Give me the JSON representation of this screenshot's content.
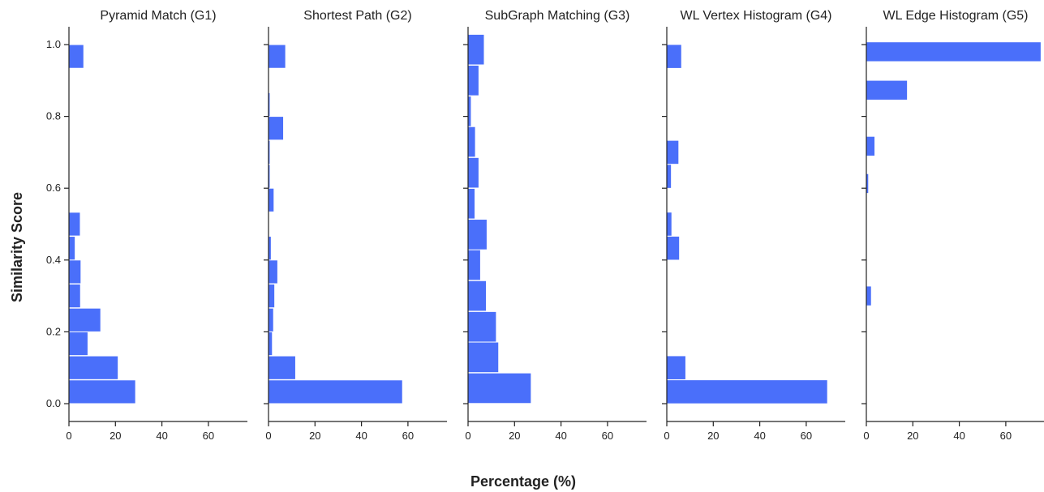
{
  "chart_data": {
    "type": "bar",
    "orientation": "horizontal",
    "xlabel": "Percentage (%)",
    "ylabel": "Similarity Score",
    "ylim": [
      -0.05,
      1.05
    ],
    "xlim": [
      0,
      76
    ],
    "bar_color": "#4a6ffa",
    "y_ticks": [
      0.0,
      0.2,
      0.4,
      0.6,
      0.8,
      1.0
    ],
    "y_tick_labels": [
      "0.0",
      "0.2",
      "0.4",
      "0.6",
      "0.8",
      "1.0"
    ],
    "x_ticks": [
      0,
      20,
      40,
      60
    ],
    "x_tick_labels": [
      "0",
      "20",
      "40",
      "60"
    ],
    "panels": [
      {
        "title": "Pyramid Match (G1)",
        "bars": [
          {
            "y": 0.033,
            "value": 28.5
          },
          {
            "y": 0.1,
            "value": 21.0
          },
          {
            "y": 0.167,
            "value": 8.0
          },
          {
            "y": 0.233,
            "value": 13.5
          },
          {
            "y": 0.3,
            "value": 4.8
          },
          {
            "y": 0.367,
            "value": 5.0
          },
          {
            "y": 0.433,
            "value": 2.5
          },
          {
            "y": 0.5,
            "value": 4.7
          },
          {
            "y": 0.967,
            "value": 6.2
          }
        ]
      },
      {
        "title": "Shortest Path (G2)",
        "bars": [
          {
            "y": 0.033,
            "value": 57.5
          },
          {
            "y": 0.1,
            "value": 11.5
          },
          {
            "y": 0.167,
            "value": 1.5
          },
          {
            "y": 0.233,
            "value": 2.0
          },
          {
            "y": 0.3,
            "value": 2.5
          },
          {
            "y": 0.367,
            "value": 3.8
          },
          {
            "y": 0.433,
            "value": 1.0
          },
          {
            "y": 0.567,
            "value": 2.2
          },
          {
            "y": 0.633,
            "value": 0.5
          },
          {
            "y": 0.7,
            "value": 0.5
          },
          {
            "y": 0.767,
            "value": 6.3
          },
          {
            "y": 0.833,
            "value": 0.5
          },
          {
            "y": 0.967,
            "value": 7.2
          }
        ]
      },
      {
        "title": "SubGraph Matching (G3)",
        "bars": [
          {
            "y": 0.043,
            "value": 27.0
          },
          {
            "y": 0.129,
            "value": 13.0
          },
          {
            "y": 0.214,
            "value": 12.0
          },
          {
            "y": 0.3,
            "value": 7.7
          },
          {
            "y": 0.386,
            "value": 5.2
          },
          {
            "y": 0.471,
            "value": 8.0
          },
          {
            "y": 0.557,
            "value": 2.8
          },
          {
            "y": 0.643,
            "value": 4.5
          },
          {
            "y": 0.729,
            "value": 3.0
          },
          {
            "y": 0.814,
            "value": 1.2
          },
          {
            "y": 0.9,
            "value": 4.5
          },
          {
            "y": 0.986,
            "value": 6.8
          }
        ]
      },
      {
        "title": "WL Vertex Histogram (G4)",
        "bars": [
          {
            "y": 0.033,
            "value": 69.0
          },
          {
            "y": 0.1,
            "value": 8.0
          },
          {
            "y": 0.433,
            "value": 5.3
          },
          {
            "y": 0.5,
            "value": 2.0
          },
          {
            "y": 0.633,
            "value": 1.8
          },
          {
            "y": 0.7,
            "value": 5.0
          },
          {
            "y": 0.967,
            "value": 6.2
          }
        ]
      },
      {
        "title": "WL Edge Histogram (G5)",
        "bars": [
          {
            "y": 0.3,
            "value": 2.0
          },
          {
            "y": 0.613,
            "value": 0.8
          },
          {
            "y": 0.717,
            "value": 3.5
          },
          {
            "y": 0.873,
            "value": 17.5
          },
          {
            "y": 0.98,
            "value": 75.0
          }
        ]
      }
    ]
  }
}
